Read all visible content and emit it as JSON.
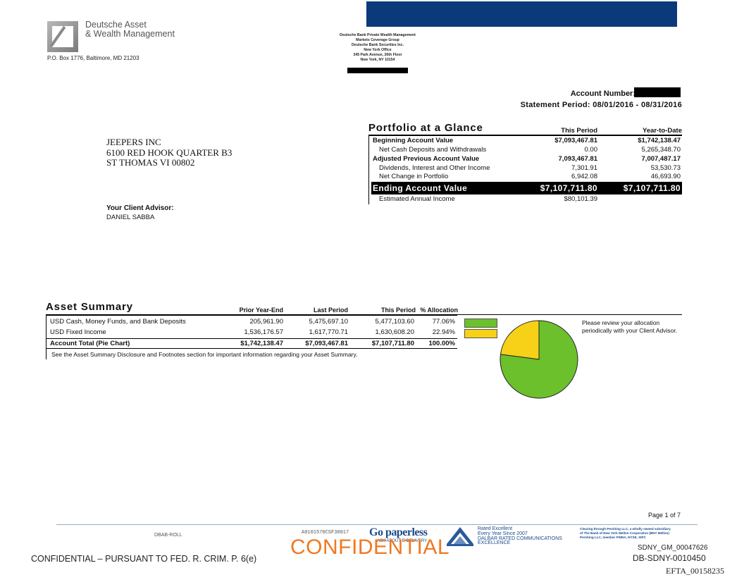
{
  "header": {
    "brand_line1": "Deutsche Asset",
    "brand_line2": "& Wealth Management",
    "po_box": "P.O. Box 1776, Baltimore, MD 21203",
    "bank_address": [
      "Deutsche Bank Private Wealth Management",
      "Markets Coverage Group",
      "Deutsche Bank Securities Inc.",
      "New York Office",
      "345 Park Avenue, 26th Floor",
      "New York, NY 10154"
    ],
    "colors": {
      "top_bar": "#0b3a7a"
    }
  },
  "account": {
    "label": "Account Number:",
    "statement_period": "Statement Period: 08/01/2016 - 08/31/2016"
  },
  "client": {
    "name": "JEEPERS INC",
    "address1": "6100 RED HOOK QUARTER B3",
    "address2": "ST THOMAS VI 00802",
    "advisor_label": "Your Client Advisor:",
    "advisor_name": "DANIEL SABBA"
  },
  "portfolio": {
    "title": "Portfolio at a Glance",
    "col_this_period": "This Period",
    "col_ytd": "Year-to-Date",
    "rows": [
      {
        "label": "Beginning Account Value",
        "this_period": "$7,093,467.81",
        "ytd": "$1,742,138.47",
        "bold": true
      },
      {
        "label": "Net Cash Deposits and Withdrawals",
        "this_period": "0.00",
        "ytd": "5,265,348.70",
        "bold": false
      },
      {
        "label": "Adjusted Previous Account Value",
        "this_period": "7,093,467.81",
        "ytd": "7,007,487.17",
        "bold": true
      },
      {
        "label": "Dividends, Interest and Other Income",
        "this_period": "7,301.91",
        "ytd": "53,530.73",
        "bold": false
      },
      {
        "label": "Net Change in Portfolio",
        "this_period": "6,942.08",
        "ytd": "46,693.90",
        "bold": false
      }
    ],
    "ending": {
      "label": "Ending Account Value",
      "this_period": "$7,107,711.80",
      "ytd": "$7,107,711.80"
    },
    "estimated": {
      "label": "Estimated Annual Income",
      "this_period": "$80,101.39"
    }
  },
  "asset_summary": {
    "title": "Asset Summary",
    "headers": {
      "prior": "Prior Year-End",
      "last": "Last Period",
      "this": "This Period",
      "alloc": "% Allocation"
    },
    "rows": [
      {
        "label": "USD Cash, Money Funds, and Bank Deposits",
        "prior": "205,961.90",
        "last": "5,475,697.10",
        "this": "5,477,103.60",
        "alloc": "77.06%",
        "color": "#6cc02c"
      },
      {
        "label": "USD Fixed Income",
        "prior": "1,536,176.57",
        "last": "1,617,770.71",
        "this": "1,630,608.20",
        "alloc": "22.94%",
        "color": "#f7d117"
      }
    ],
    "total": {
      "label": "Account Total (Pie Chart)",
      "prior": "$1,742,138.47",
      "last": "$7,093,467.81",
      "this": "$7,107,711.80",
      "alloc": "100.00%"
    },
    "note": "See the Asset Summary Disclosure and Footnotes section for important information regarding your Asset Summary.",
    "pie_note_line1": "Please review your allocation",
    "pie_note_line2": "periodically with your Client Advisor."
  },
  "chart_data": {
    "type": "pie",
    "categories": [
      "USD Cash, Money Funds, and Bank Deposits",
      "USD Fixed Income"
    ],
    "values": [
      77.06,
      22.94
    ],
    "colors": [
      "#6cc02c",
      "#f7d117"
    ]
  },
  "footer": {
    "page": "Page 1 of 7",
    "dbab": "DBAB-ROLL",
    "code": "A0101570CSF30017",
    "paperless": "Go paperless",
    "paperless_sub": "ASK ABOUT E-DELIVERY",
    "dalbar": [
      "Rated Excellent",
      "Every Year Since 2007",
      "DALBAR RATED COMMUNICATIONS",
      "EXCELLENCE"
    ],
    "pershing": [
      "Clearing through Pershing LLC, a wholly owned subsidiary",
      "of The Bank of New York Mellon Corporation (BNY Mellon)",
      "Pershing LLC, member FINRA, NYSE, SIPC"
    ],
    "confidential_big": "CONFIDENTIAL",
    "confidential_small": "CONFIDENTIAL – PURSUANT TO FED. R. CRIM. P. 6(e)",
    "sdny1": "SDNY_GM_00047626",
    "sdny2": "DB-SDNY-0010450",
    "efta": "EFTA_00158235"
  }
}
